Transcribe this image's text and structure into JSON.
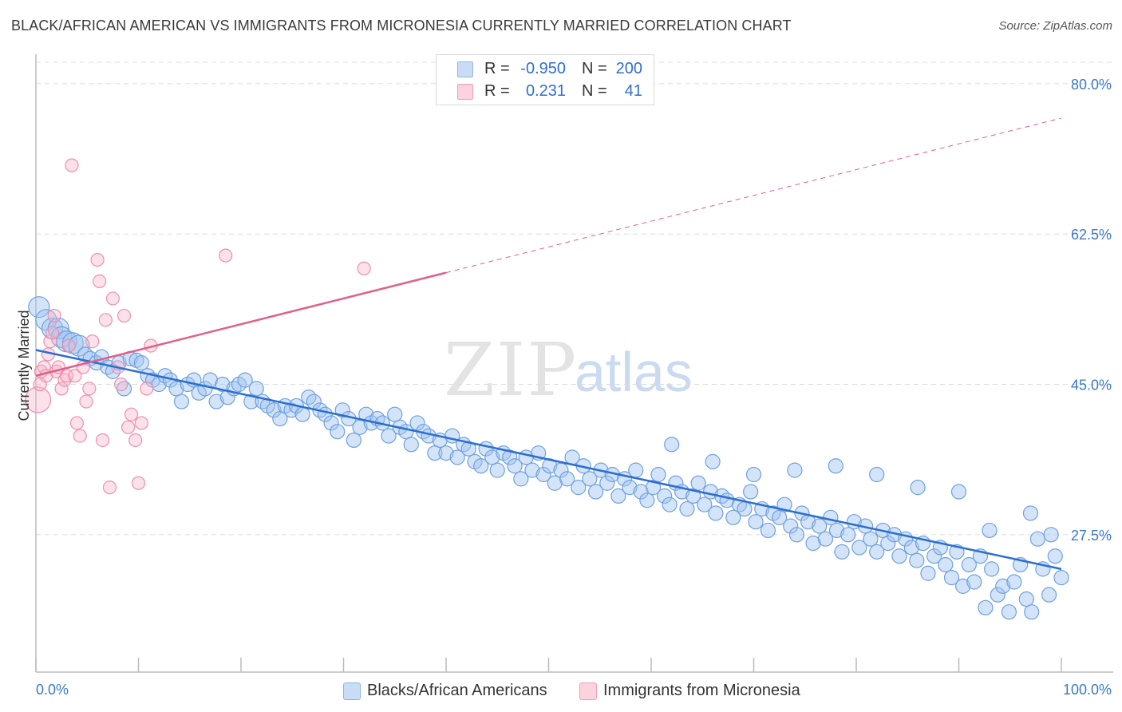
{
  "header": {
    "title": "BLACK/AFRICAN AMERICAN VS IMMIGRANTS FROM MICRONESIA CURRENTLY MARRIED CORRELATION CHART",
    "source": "Source: ZipAtlas.com"
  },
  "watermark": {
    "zip": "ZIP",
    "atlas": "atlas"
  },
  "legend_top": {
    "rows": [
      {
        "r_label": "R =",
        "r_value": "-0.950",
        "n_label": "N =",
        "n_value": "200",
        "color": "#a8c8f0"
      },
      {
        "r_label": "R =",
        "r_value": "0.231",
        "n_label": "N =",
        "n_value": "41",
        "color": "#f5b8cc"
      }
    ]
  },
  "legend_bottom": {
    "items": [
      {
        "label": "Blacks/African Americans",
        "color": "#a8c8f0"
      },
      {
        "label": "Immigrants from Micronesia",
        "color": "#f5b8cc"
      }
    ]
  },
  "chart_data": {
    "type": "scatter",
    "title": "BLACK/AFRICAN AMERICAN VS IMMIGRANTS FROM MICRONESIA CURRENTLY MARRIED CORRELATION CHART",
    "xlabel": "",
    "ylabel": "Currently Married",
    "xlim": [
      0,
      100
    ],
    "ylim": [
      11.5,
      82.5
    ],
    "x_tick_labels": [
      "0.0%",
      "100.0%"
    ],
    "y_ticks": [
      27.5,
      45.0,
      62.5,
      80.0
    ],
    "y_tick_labels": [
      "27.5%",
      "45.0%",
      "62.5%",
      "80.0%"
    ],
    "grid": true,
    "colors": {
      "blue": "#6fa0e0",
      "blue_line": "#2a6fd0",
      "pink": "#ee8fae",
      "pink_line": "#e0608a"
    },
    "series": [
      {
        "name": "Blacks/African Americans",
        "trend": {
          "x0": 0,
          "y0": 49.0,
          "x1": 100,
          "y1": 23.5
        },
        "points": [
          [
            0.3,
            54.0
          ],
          [
            1.0,
            52.5
          ],
          [
            1.6,
            51.5
          ],
          [
            2.2,
            51.5
          ],
          [
            2.5,
            50.5
          ],
          [
            3.0,
            50.0
          ],
          [
            3.6,
            49.8
          ],
          [
            4.2,
            49.5
          ],
          [
            4.8,
            48.5
          ],
          [
            5.3,
            48.0
          ],
          [
            5.9,
            47.5
          ],
          [
            6.4,
            48.2
          ],
          [
            7.0,
            47.0
          ],
          [
            7.5,
            46.5
          ],
          [
            8.1,
            47.5
          ],
          [
            8.6,
            44.5
          ],
          [
            9.2,
            48.0
          ],
          [
            9.8,
            47.8
          ],
          [
            10.3,
            47.5
          ],
          [
            10.9,
            46.0
          ],
          [
            11.4,
            45.5
          ],
          [
            12.0,
            45.0
          ],
          [
            12.6,
            46.0
          ],
          [
            13.1,
            45.5
          ],
          [
            13.7,
            44.5
          ],
          [
            14.2,
            43.0
          ],
          [
            14.8,
            45.0
          ],
          [
            15.4,
            45.5
          ],
          [
            15.9,
            44.0
          ],
          [
            16.5,
            44.5
          ],
          [
            17.0,
            45.5
          ],
          [
            17.6,
            43.0
          ],
          [
            18.2,
            45.0
          ],
          [
            18.7,
            43.5
          ],
          [
            19.3,
            44.5
          ],
          [
            19.8,
            45.0
          ],
          [
            20.4,
            45.5
          ],
          [
            21.0,
            43.0
          ],
          [
            21.5,
            44.5
          ],
          [
            22.1,
            43.0
          ],
          [
            22.6,
            42.5
          ],
          [
            23.2,
            42.0
          ],
          [
            23.8,
            41.0
          ],
          [
            24.3,
            42.5
          ],
          [
            24.9,
            42.0
          ],
          [
            25.4,
            42.5
          ],
          [
            26.0,
            41.5
          ],
          [
            26.6,
            43.5
          ],
          [
            27.1,
            43.0
          ],
          [
            27.7,
            42.0
          ],
          [
            28.2,
            41.5
          ],
          [
            28.8,
            40.5
          ],
          [
            29.4,
            39.5
          ],
          [
            29.9,
            42.0
          ],
          [
            30.5,
            41.0
          ],
          [
            31.0,
            38.5
          ],
          [
            31.6,
            40.0
          ],
          [
            32.2,
            41.5
          ],
          [
            32.7,
            40.5
          ],
          [
            33.3,
            41.0
          ],
          [
            33.8,
            40.5
          ],
          [
            34.4,
            39.0
          ],
          [
            35.0,
            41.5
          ],
          [
            35.5,
            40.0
          ],
          [
            36.1,
            39.5
          ],
          [
            36.6,
            38.0
          ],
          [
            37.2,
            40.5
          ],
          [
            37.8,
            39.5
          ],
          [
            38.3,
            39.0
          ],
          [
            38.9,
            37.0
          ],
          [
            39.4,
            38.5
          ],
          [
            40.0,
            37.0
          ],
          [
            40.6,
            39.0
          ],
          [
            41.1,
            36.5
          ],
          [
            41.7,
            38.0
          ],
          [
            42.2,
            37.5
          ],
          [
            42.8,
            36.0
          ],
          [
            43.4,
            35.5
          ],
          [
            43.9,
            37.5
          ],
          [
            44.5,
            36.5
          ],
          [
            45.0,
            35.0
          ],
          [
            45.6,
            37.0
          ],
          [
            46.2,
            36.5
          ],
          [
            46.7,
            35.5
          ],
          [
            47.3,
            34.0
          ],
          [
            47.8,
            36.5
          ],
          [
            48.4,
            35.0
          ],
          [
            49.0,
            37.0
          ],
          [
            49.5,
            34.5
          ],
          [
            50.1,
            35.5
          ],
          [
            50.6,
            33.5
          ],
          [
            51.2,
            35.0
          ],
          [
            51.8,
            34.0
          ],
          [
            52.3,
            36.5
          ],
          [
            52.9,
            33.0
          ],
          [
            53.4,
            35.5
          ],
          [
            54.0,
            34.0
          ],
          [
            54.6,
            32.5
          ],
          [
            55.1,
            35.0
          ],
          [
            55.7,
            33.5
          ],
          [
            56.2,
            34.5
          ],
          [
            56.8,
            32.0
          ],
          [
            57.4,
            34.0
          ],
          [
            57.9,
            33.0
          ],
          [
            58.5,
            35.0
          ],
          [
            59.0,
            32.5
          ],
          [
            59.6,
            31.5
          ],
          [
            60.2,
            33.0
          ],
          [
            60.7,
            34.5
          ],
          [
            61.3,
            32.0
          ],
          [
            61.8,
            31.0
          ],
          [
            62.4,
            33.5
          ],
          [
            63.0,
            32.5
          ],
          [
            63.5,
            30.5
          ],
          [
            64.1,
            32.0
          ],
          [
            64.6,
            33.5
          ],
          [
            65.2,
            31.0
          ],
          [
            65.8,
            32.5
          ],
          [
            66.3,
            30.0
          ],
          [
            66.9,
            32.0
          ],
          [
            67.4,
            31.5
          ],
          [
            68.0,
            29.5
          ],
          [
            68.6,
            31.0
          ],
          [
            69.1,
            30.5
          ],
          [
            69.7,
            32.5
          ],
          [
            70.2,
            29.0
          ],
          [
            70.8,
            30.5
          ],
          [
            71.4,
            28.0
          ],
          [
            71.9,
            30.0
          ],
          [
            72.5,
            29.5
          ],
          [
            73.0,
            31.0
          ],
          [
            73.6,
            28.5
          ],
          [
            74.2,
            27.5
          ],
          [
            74.7,
            30.0
          ],
          [
            75.3,
            29.0
          ],
          [
            75.8,
            26.5
          ],
          [
            76.4,
            28.5
          ],
          [
            77.0,
            27.0
          ],
          [
            77.5,
            29.5
          ],
          [
            78.1,
            28.0
          ],
          [
            78.6,
            25.5
          ],
          [
            79.2,
            27.5
          ],
          [
            79.8,
            29.0
          ],
          [
            80.3,
            26.0
          ],
          [
            80.9,
            28.5
          ],
          [
            81.4,
            27.0
          ],
          [
            82.0,
            25.5
          ],
          [
            82.6,
            28.0
          ],
          [
            83.1,
            26.5
          ],
          [
            83.7,
            27.5
          ],
          [
            84.2,
            25.0
          ],
          [
            84.8,
            27.0
          ],
          [
            85.4,
            26.0
          ],
          [
            85.9,
            24.5
          ],
          [
            86.5,
            26.5
          ],
          [
            87.0,
            23.0
          ],
          [
            87.6,
            25.0
          ],
          [
            88.2,
            26.0
          ],
          [
            88.7,
            24.0
          ],
          [
            89.3,
            22.5
          ],
          [
            89.8,
            25.5
          ],
          [
            90.4,
            21.5
          ],
          [
            91.0,
            24.0
          ],
          [
            91.5,
            22.0
          ],
          [
            92.1,
            25.0
          ],
          [
            92.6,
            19.0
          ],
          [
            93.2,
            23.5
          ],
          [
            93.8,
            20.5
          ],
          [
            94.3,
            21.5
          ],
          [
            94.9,
            18.5
          ],
          [
            95.4,
            22.0
          ],
          [
            96.0,
            24.0
          ],
          [
            96.6,
            20.0
          ],
          [
            97.1,
            18.5
          ],
          [
            97.7,
            27.0
          ],
          [
            98.2,
            23.5
          ],
          [
            98.8,
            20.5
          ],
          [
            99.4,
            25.0
          ],
          [
            100.0,
            22.5
          ],
          [
            99.0,
            27.5
          ],
          [
            97.0,
            30.0
          ],
          [
            93.0,
            28.0
          ],
          [
            90.0,
            32.5
          ],
          [
            86.0,
            33.0
          ],
          [
            82.0,
            34.5
          ],
          [
            78.0,
            35.5
          ],
          [
            74.0,
            35.0
          ],
          [
            70.0,
            34.5
          ],
          [
            66.0,
            36.0
          ],
          [
            62.0,
            38.0
          ]
        ]
      },
      {
        "name": "Immigrants from Micronesia",
        "trend": {
          "x0": 0,
          "y0": 46.0,
          "x1": 40,
          "y1": 58.0,
          "x_end_dashed": 100,
          "y_end_dashed": 76.0
        },
        "points": [
          [
            0.2,
            43.2
          ],
          [
            0.4,
            45.0
          ],
          [
            0.5,
            46.5
          ],
          [
            0.8,
            47.0
          ],
          [
            1.0,
            46.0
          ],
          [
            1.2,
            48.5
          ],
          [
            1.4,
            50.0
          ],
          [
            1.6,
            51.0
          ],
          [
            1.8,
            53.0
          ],
          [
            2.0,
            46.5
          ],
          [
            2.2,
            47.0
          ],
          [
            2.5,
            44.5
          ],
          [
            2.8,
            45.5
          ],
          [
            3.0,
            46.0
          ],
          [
            3.2,
            49.5
          ],
          [
            3.5,
            70.5
          ],
          [
            3.8,
            46.0
          ],
          [
            4.0,
            40.5
          ],
          [
            4.3,
            39.0
          ],
          [
            4.6,
            47.0
          ],
          [
            4.9,
            43.0
          ],
          [
            5.2,
            44.5
          ],
          [
            5.5,
            50.0
          ],
          [
            6.0,
            59.5
          ],
          [
            6.2,
            57.0
          ],
          [
            6.5,
            38.5
          ],
          [
            6.8,
            52.5
          ],
          [
            7.2,
            33.0
          ],
          [
            7.5,
            55.0
          ],
          [
            8.0,
            47.0
          ],
          [
            8.3,
            45.0
          ],
          [
            8.6,
            53.0
          ],
          [
            9.0,
            40.0
          ],
          [
            9.3,
            41.5
          ],
          [
            9.7,
            38.5
          ],
          [
            10.0,
            33.5
          ],
          [
            10.3,
            40.5
          ],
          [
            10.8,
            44.5
          ],
          [
            11.2,
            49.5
          ],
          [
            18.5,
            60.0
          ],
          [
            32.0,
            58.5
          ]
        ]
      }
    ]
  }
}
